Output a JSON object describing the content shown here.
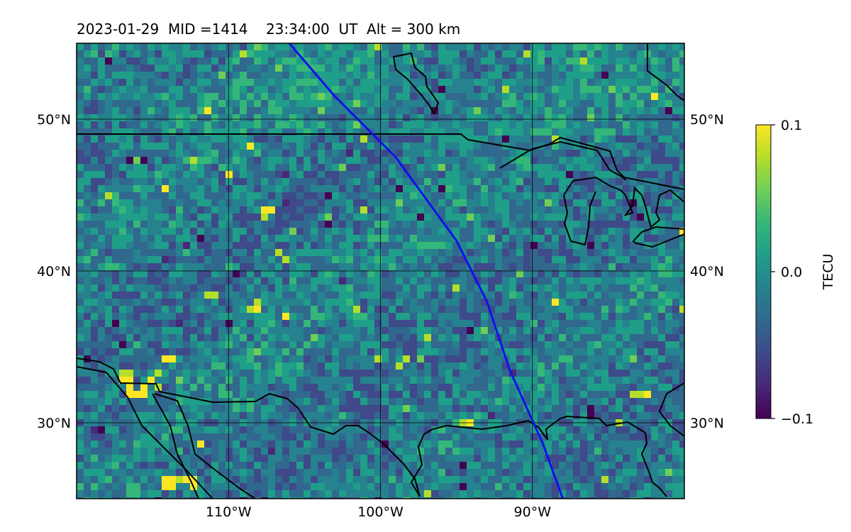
{
  "title": "2023-01-29  MID =1414    23:34:00  UT  Alt = 300 km",
  "colors": {
    "viridis": [
      "#440154",
      "#482878",
      "#3e4a89",
      "#31688e",
      "#26828e",
      "#1f9e89",
      "#35b779",
      "#6ece58",
      "#b5de2b",
      "#fde725"
    ],
    "coastline": "#000000",
    "satellite_track": "#1010ee",
    "gridline": "#000000"
  },
  "map": {
    "projection": "plate-carree",
    "lon_range": [
      -120,
      -80
    ],
    "lat_range": [
      25,
      55
    ],
    "lat_ticks": [
      {
        "value": 50,
        "label": "50°N"
      },
      {
        "value": 40,
        "label": "40°N"
      },
      {
        "value": 30,
        "label": "30°N"
      }
    ],
    "lon_ticks": [
      {
        "value": -110,
        "label": "110°W"
      },
      {
        "value": -100,
        "label": "100°W"
      },
      {
        "value": -90,
        "label": "90°W"
      }
    ],
    "field": "TEC perturbation",
    "field_range": [
      -0.1,
      0.1
    ],
    "satellite_track": [
      [
        -106,
        55
      ],
      [
        -103,
        51.5
      ],
      [
        -99,
        47.5
      ],
      [
        -95,
        42
      ],
      [
        -93,
        38
      ],
      [
        -91.5,
        33.5
      ],
      [
        -89.3,
        28.6
      ],
      [
        -88,
        25
      ]
    ]
  },
  "colorbar": {
    "label": "TECU",
    "ticks": [
      {
        "value": 0.1,
        "label": "0.1"
      },
      {
        "value": 0.0,
        "label": "0.0"
      },
      {
        "value": -0.1,
        "label": "−0.1"
      }
    ]
  }
}
